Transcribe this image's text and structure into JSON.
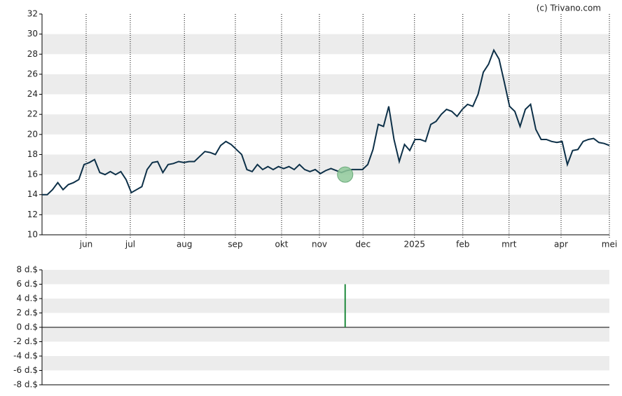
{
  "source": "(c) Trivano.com",
  "chart_data": [
    {
      "type": "line",
      "color": "#0d3048",
      "xlim": [
        0,
        108
      ],
      "xticks": [
        {
          "value": 8.4,
          "label": "jun"
        },
        {
          "value": 16.8,
          "label": "jul"
        },
        {
          "value": 27.1,
          "label": "aug"
        },
        {
          "value": 36.8,
          "label": "sep"
        },
        {
          "value": 45.6,
          "label": "okt"
        },
        {
          "value": 52.8,
          "label": "nov"
        },
        {
          "value": 61.1,
          "label": "dec"
        },
        {
          "value": 70.9,
          "label": "2025"
        },
        {
          "value": 80.1,
          "label": "feb"
        },
        {
          "value": 88.9,
          "label": "mrt"
        },
        {
          "value": 98.8,
          "label": "apr"
        },
        {
          "value": 108,
          "label": "mei"
        }
      ],
      "ylim": [
        10,
        32
      ],
      "yticks": [
        10,
        12,
        14,
        16,
        18,
        20,
        22,
        24,
        26,
        28,
        30,
        32
      ],
      "grid": true,
      "values": [
        14.0,
        14.0,
        14.5,
        15.2,
        14.5,
        15.0,
        15.2,
        15.5,
        17.0,
        17.2,
        17.5,
        16.2,
        16.0,
        16.3,
        16.0,
        16.3,
        15.5,
        14.2,
        14.5,
        14.8,
        16.5,
        17.2,
        17.3,
        16.2,
        17.0,
        17.1,
        17.3,
        17.2,
        17.3,
        17.3,
        17.8,
        18.3,
        18.2,
        18.0,
        18.9,
        19.3,
        19.0,
        18.5,
        18.0,
        16.5,
        16.3,
        17.0,
        16.5,
        16.8,
        16.5,
        16.8,
        16.6,
        16.8,
        16.5,
        17.0,
        16.5,
        16.3,
        16.5,
        16.1,
        16.4,
        16.6,
        16.4,
        16.2,
        16.4,
        16.5,
        16.5,
        16.5,
        17.0,
        18.5,
        21.0,
        20.8,
        22.8,
        19.5,
        17.3,
        19.0,
        18.4,
        19.5,
        19.5,
        19.3,
        21.0,
        21.3,
        22.0,
        22.5,
        22.3,
        21.8,
        22.5,
        23.0,
        22.8,
        24.0,
        26.2,
        27.0,
        28.4,
        27.5,
        25.2,
        22.8,
        22.3,
        20.8,
        22.5,
        23.0,
        20.5,
        19.5,
        19.5,
        19.3,
        19.2,
        19.3,
        17.0,
        18.4,
        18.5,
        19.3,
        19.5,
        19.6,
        19.2,
        19.1,
        18.9
      ],
      "markers": [
        {
          "x": 57.7,
          "y": 16.0,
          "color": "#8fc99a"
        }
      ]
    },
    {
      "type": "bar",
      "color": "#1f8a3c",
      "xlim": [
        0,
        108
      ],
      "ylim": [
        -8,
        8
      ],
      "yticks": [
        {
          "value": 8,
          "label": "8 d.$"
        },
        {
          "value": 6,
          "label": "6 d.$"
        },
        {
          "value": 4,
          "label": "4 d.$"
        },
        {
          "value": 2,
          "label": "2 d.$"
        },
        {
          "value": 0,
          "label": "0 d.$"
        },
        {
          "value": -2,
          "label": "-2 d.$"
        },
        {
          "value": -4,
          "label": "-4 d.$"
        },
        {
          "value": -6,
          "label": "-6 d.$"
        },
        {
          "value": -8,
          "label": "-8 d.$"
        }
      ],
      "grid": true,
      "x": [
        57.7
      ],
      "values": [
        6
      ]
    }
  ]
}
